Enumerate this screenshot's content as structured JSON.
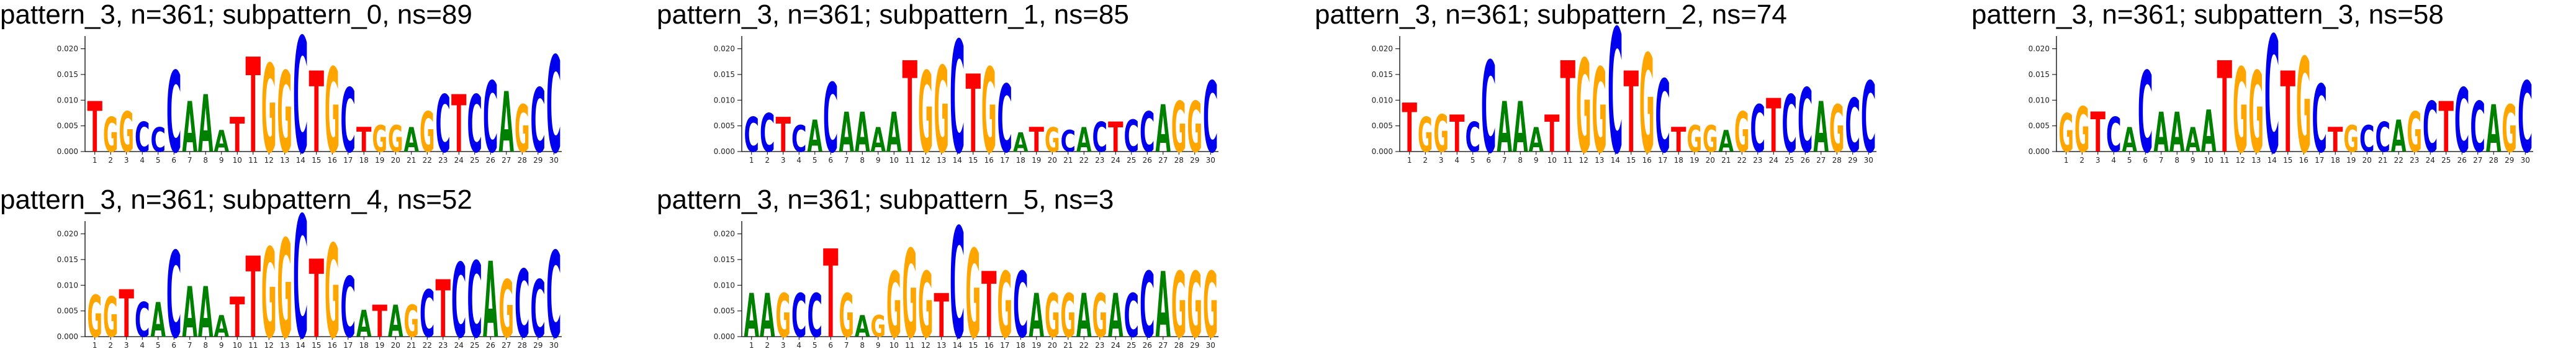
{
  "colors": {
    "A": "#008000",
    "C": "#0000ee",
    "G": "#ffa500",
    "T": "#ff0000"
  },
  "chart_data": [
    {
      "type": "sequence-logo",
      "title": "pattern_3, n=361; subpattern_0, ns=89",
      "ylim": [
        0,
        0.022
      ],
      "yticks": [
        "0.000",
        "0.005",
        "0.010",
        "0.015",
        "0.020"
      ],
      "positions": [
        "1",
        "2",
        "3",
        "4",
        "5",
        "6",
        "7",
        "8",
        "9",
        "10",
        "11",
        "12",
        "13",
        "14",
        "15",
        "16",
        "17",
        "18",
        "19",
        "20",
        "21",
        "22",
        "23",
        "24",
        "25",
        "26",
        "27",
        "28",
        "29",
        "30"
      ],
      "consensus": [
        "T",
        "G",
        "G",
        "C",
        "C",
        "C",
        "A",
        "A",
        "A",
        "T",
        "T",
        "G",
        "G",
        "C",
        "T",
        "G",
        "C",
        "T",
        "G",
        "G",
        "A",
        "G",
        "C",
        "T",
        "C",
        "C",
        "A",
        "G",
        "C",
        "C"
      ],
      "heights": [
        0.0098,
        0.0068,
        0.0078,
        0.0058,
        0.0048,
        0.0158,
        0.0098,
        0.0112,
        0.0042,
        0.0068,
        0.0185,
        0.0172,
        0.0158,
        0.0225,
        0.0158,
        0.0165,
        0.0125,
        0.0048,
        0.0052,
        0.0052,
        0.0048,
        0.0078,
        0.0112,
        0.0112,
        0.0112,
        0.0138,
        0.0118,
        0.0092,
        0.0125,
        0.0188
      ]
    },
    {
      "type": "sequence-logo",
      "title": "pattern_3, n=361; subpattern_1, ns=85",
      "ylim": [
        0,
        0.022
      ],
      "yticks": [
        "0.000",
        "0.005",
        "0.010",
        "0.015",
        "0.020"
      ],
      "positions": [
        "1",
        "2",
        "3",
        "4",
        "5",
        "6",
        "7",
        "8",
        "9",
        "10",
        "11",
        "12",
        "13",
        "14",
        "15",
        "16",
        "17",
        "18",
        "19",
        "20",
        "21",
        "22",
        "23",
        "24",
        "25",
        "26",
        "27",
        "28",
        "29",
        "30"
      ],
      "consensus": [
        "C",
        "C",
        "T",
        "C",
        "A",
        "C",
        "A",
        "A",
        "A",
        "A",
        "T",
        "G",
        "G",
        "C",
        "T",
        "G",
        "C",
        "A",
        "T",
        "G",
        "C",
        "A",
        "C",
        "T",
        "C",
        "C",
        "A",
        "G",
        "G",
        "C"
      ],
      "heights": [
        0.0068,
        0.0075,
        0.0068,
        0.0052,
        0.0062,
        0.0135,
        0.0078,
        0.0078,
        0.0048,
        0.0078,
        0.0178,
        0.0158,
        0.0168,
        0.0218,
        0.0152,
        0.0165,
        0.0132,
        0.0038,
        0.0048,
        0.0048,
        0.0042,
        0.0048,
        0.0058,
        0.0058,
        0.0062,
        0.0078,
        0.0092,
        0.0098,
        0.0098,
        0.0138
      ]
    },
    {
      "type": "sequence-logo",
      "title": "pattern_3, n=361; subpattern_2, ns=74",
      "ylim": [
        0,
        0.022
      ],
      "yticks": [
        "0.000",
        "0.005",
        "0.010",
        "0.015",
        "0.020"
      ],
      "positions": [
        "1",
        "2",
        "3",
        "4",
        "5",
        "6",
        "7",
        "8",
        "9",
        "10",
        "11",
        "12",
        "13",
        "14",
        "15",
        "16",
        "17",
        "18",
        "19",
        "20",
        "21",
        "22",
        "23",
        "24",
        "25",
        "26",
        "27",
        "28",
        "29",
        "30"
      ],
      "consensus": [
        "T",
        "G",
        "G",
        "T",
        "C",
        "C",
        "A",
        "A",
        "A",
        "T",
        "T",
        "G",
        "G",
        "C",
        "T",
        "G",
        "C",
        "T",
        "G",
        "G",
        "A",
        "G",
        "C",
        "T",
        "C",
        "C",
        "A",
        "G",
        "C",
        "C"
      ],
      "heights": [
        0.0095,
        0.0068,
        0.0072,
        0.0072,
        0.0058,
        0.0178,
        0.0098,
        0.0098,
        0.0048,
        0.0072,
        0.0178,
        0.0182,
        0.0165,
        0.0242,
        0.0158,
        0.0192,
        0.0142,
        0.0048,
        0.0052,
        0.0052,
        0.0042,
        0.0078,
        0.0092,
        0.0105,
        0.0112,
        0.0125,
        0.0098,
        0.0092,
        0.0105,
        0.0138
      ]
    },
    {
      "type": "sequence-logo",
      "title": "pattern_3, n=361; subpattern_3, ns=58",
      "ylim": [
        0,
        0.022
      ],
      "yticks": [
        "0.000",
        "0.005",
        "0.010",
        "0.015",
        "0.020"
      ],
      "positions": [
        "1",
        "2",
        "3",
        "4",
        "5",
        "6",
        "7",
        "8",
        "9",
        "10",
        "11",
        "12",
        "13",
        "14",
        "15",
        "16",
        "17",
        "18",
        "19",
        "20",
        "21",
        "22",
        "23",
        "24",
        "25",
        "26",
        "27",
        "28",
        "29",
        "30"
      ],
      "consensus": [
        "G",
        "G",
        "T",
        "C",
        "A",
        "C",
        "A",
        "A",
        "A",
        "A",
        "T",
        "G",
        "G",
        "C",
        "T",
        "G",
        "C",
        "T",
        "G",
        "C",
        "C",
        "A",
        "G",
        "C",
        "T",
        "C",
        "C",
        "A",
        "G",
        "C"
      ],
      "heights": [
        0.0075,
        0.0088,
        0.0078,
        0.0068,
        0.0048,
        0.0158,
        0.0078,
        0.0078,
        0.0048,
        0.0082,
        0.0178,
        0.0165,
        0.0158,
        0.0228,
        0.0158,
        0.0185,
        0.0132,
        0.0048,
        0.0052,
        0.0052,
        0.0058,
        0.0062,
        0.0078,
        0.0098,
        0.0098,
        0.0125,
        0.0098,
        0.0092,
        0.0092,
        0.0138
      ]
    },
    {
      "type": "sequence-logo",
      "title": "pattern_3, n=361; subpattern_4, ns=52",
      "ylim": [
        0,
        0.022
      ],
      "yticks": [
        "0.000",
        "0.005",
        "0.010",
        "0.015",
        "0.020"
      ],
      "positions": [
        "1",
        "2",
        "3",
        "4",
        "5",
        "6",
        "7",
        "8",
        "9",
        "10",
        "11",
        "12",
        "13",
        "14",
        "15",
        "16",
        "17",
        "18",
        "19",
        "20",
        "21",
        "22",
        "23",
        "24",
        "25",
        "26",
        "27",
        "28",
        "29",
        "30"
      ],
      "consensus": [
        "G",
        "G",
        "T",
        "C",
        "A",
        "C",
        "A",
        "A",
        "A",
        "T",
        "T",
        "G",
        "G",
        "C",
        "T",
        "G",
        "C",
        "A",
        "T",
        "A",
        "G",
        "C",
        "T",
        "C",
        "C",
        "A",
        "G",
        "C",
        "C",
        "C"
      ],
      "heights": [
        0.0082,
        0.0078,
        0.0092,
        0.0068,
        0.0068,
        0.0168,
        0.0098,
        0.0098,
        0.0042,
        0.0078,
        0.0158,
        0.0175,
        0.0192,
        0.0238,
        0.0152,
        0.0182,
        0.0118,
        0.0052,
        0.0062,
        0.0062,
        0.0062,
        0.0092,
        0.0112,
        0.0145,
        0.0148,
        0.0148,
        0.0112,
        0.0132,
        0.0112,
        0.0168
      ]
    },
    {
      "type": "sequence-logo",
      "title": "pattern_3, n=361; subpattern_5, ns=3",
      "ylim": [
        0,
        0.022
      ],
      "yticks": [
        "0.000",
        "0.005",
        "0.010",
        "0.015",
        "0.020"
      ],
      "positions": [
        "1",
        "2",
        "3",
        "4",
        "5",
        "6",
        "7",
        "8",
        "9",
        "10",
        "11",
        "12",
        "13",
        "14",
        "15",
        "16",
        "17",
        "18",
        "19",
        "20",
        "21",
        "22",
        "23",
        "24",
        "25",
        "26",
        "27",
        "28",
        "29",
        "30"
      ],
      "consensus": [
        "A",
        "A",
        "G",
        "C",
        "C",
        "T",
        "G",
        "A",
        "G",
        "G",
        "G",
        "G",
        "T",
        "C",
        "G",
        "T",
        "G",
        "C",
        "A",
        "G",
        "G",
        "A",
        "G",
        "A",
        "C",
        "C",
        "A",
        "G",
        "G",
        "G"
      ],
      "heights": [
        0.0085,
        0.0085,
        0.0085,
        0.0085,
        0.0085,
        0.0172,
        0.0085,
        0.0042,
        0.0042,
        0.0128,
        0.0172,
        0.0128,
        0.0085,
        0.0215,
        0.0172,
        0.0128,
        0.0128,
        0.0128,
        0.0085,
        0.0085,
        0.0085,
        0.0085,
        0.0085,
        0.0085,
        0.0085,
        0.0128,
        0.0128,
        0.0128,
        0.0128,
        0.0128
      ]
    }
  ]
}
